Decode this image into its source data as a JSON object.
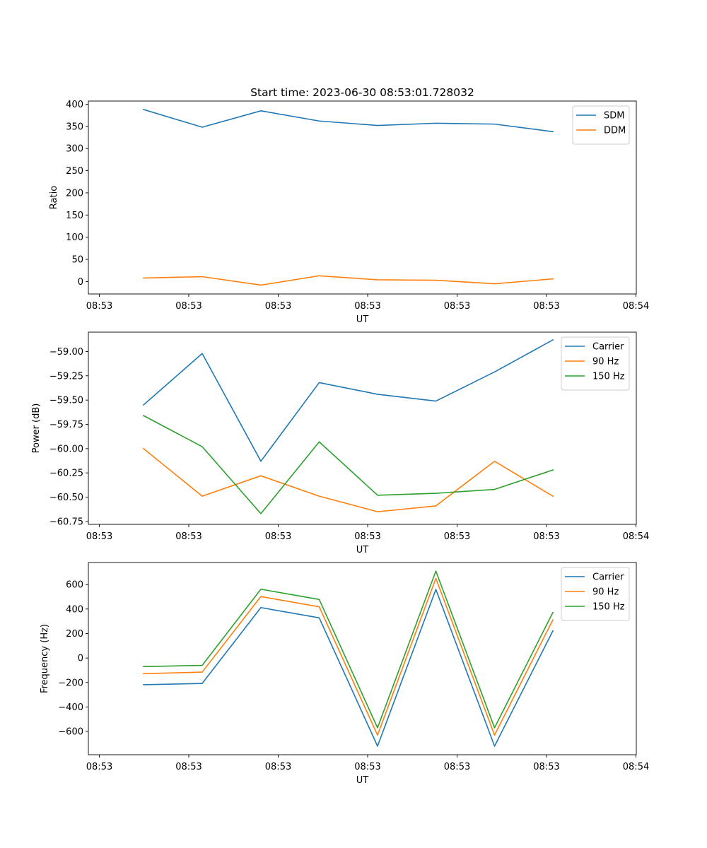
{
  "chart_data": [
    {
      "type": "line",
      "title": "Start time: 2023-06-30 08:53:01.728032",
      "xlabel": "UT",
      "ylabel": "Ratio",
      "x_tick_labels": [
        "08:53",
        "08:53",
        "08:53",
        "08:53",
        "08:53",
        "08:53",
        "08:54"
      ],
      "y_ticks": [
        0,
        50,
        100,
        150,
        200,
        250,
        300,
        350,
        400
      ],
      "y_tick_labels": [
        "0",
        "50",
        "100",
        "150",
        "200",
        "250",
        "300",
        "350",
        "400"
      ],
      "ylim": [
        -28,
        407
      ],
      "grid": false,
      "legend_position": "top-right",
      "series": [
        {
          "name": "SDM",
          "color": "#1f77b4",
          "values": [
            388,
            348,
            385,
            362,
            352,
            357,
            355,
            338
          ]
        },
        {
          "name": "DDM",
          "color": "#ff7f0e",
          "values": [
            8,
            11,
            -8,
            13,
            4,
            3,
            -5,
            6
          ]
        }
      ]
    },
    {
      "type": "line",
      "title": "",
      "xlabel": "UT",
      "ylabel": "Power (dB)",
      "x_tick_labels": [
        "08:53",
        "08:53",
        "08:53",
        "08:53",
        "08:53",
        "08:53",
        "08:54"
      ],
      "y_ticks": [
        -60.75,
        -60.5,
        -60.25,
        -60.0,
        -59.75,
        -59.5,
        -59.25,
        -59.0
      ],
      "y_tick_labels": [
        "−60.75",
        "−60.50",
        "−60.25",
        "−60.00",
        "−59.75",
        "−59.50",
        "−59.25",
        "−59.00"
      ],
      "ylim": [
        -60.78,
        -58.8
      ],
      "grid": false,
      "legend_position": "top-right",
      "series": [
        {
          "name": "Carrier",
          "color": "#1f77b4",
          "values": [
            -59.55,
            -59.02,
            -60.13,
            -59.32,
            -59.44,
            -59.51,
            -59.21,
            -58.88
          ]
        },
        {
          "name": "90 Hz",
          "color": "#ff7f0e",
          "values": [
            -60.0,
            -60.49,
            -60.28,
            -60.49,
            -60.65,
            -60.59,
            -60.13,
            -60.49
          ]
        },
        {
          "name": "150 Hz",
          "color": "#2ca02c",
          "values": [
            -59.66,
            -59.98,
            -60.67,
            -59.93,
            -60.48,
            -60.46,
            -60.42,
            -60.22
          ]
        }
      ]
    },
    {
      "type": "line",
      "title": "",
      "xlabel": "UT",
      "ylabel": "Frequency (Hz)",
      "x_tick_labels": [
        "08:53",
        "08:53",
        "08:53",
        "08:53",
        "08:53",
        "08:53",
        "08:54"
      ],
      "y_ticks": [
        -600,
        -400,
        -200,
        0,
        200,
        400,
        600
      ],
      "y_tick_labels": [
        "−600",
        "−400",
        "−200",
        "0",
        "200",
        "400",
        "600"
      ],
      "ylim": [
        -790,
        780
      ],
      "grid": false,
      "legend_position": "top-right",
      "series": [
        {
          "name": "Carrier",
          "color": "#1f77b4",
          "values": [
            -218,
            -208,
            412,
            328,
            -720,
            560,
            -720,
            222
          ]
        },
        {
          "name": "90 Hz",
          "color": "#ff7f0e",
          "values": [
            -128,
            -115,
            502,
            418,
            -630,
            650,
            -630,
            312
          ]
        },
        {
          "name": "150 Hz",
          "color": "#2ca02c",
          "values": [
            -70,
            -60,
            562,
            478,
            -570,
            710,
            -570,
            372
          ]
        }
      ]
    }
  ]
}
